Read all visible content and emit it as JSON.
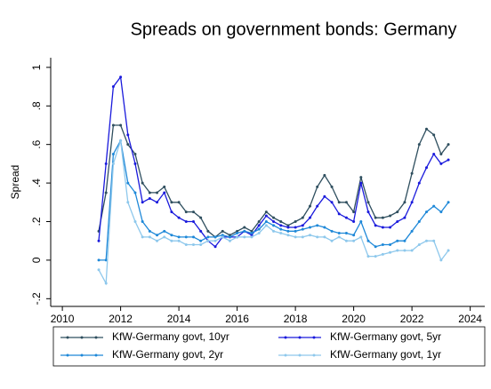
{
  "chart_data": {
    "type": "line",
    "title": "Spreads on government bonds: Germany",
    "y_label": "Spread",
    "x": [
      2011.25,
      2011.5,
      2011.75,
      2012.0,
      2012.25,
      2012.5,
      2012.75,
      2013.0,
      2013.25,
      2013.5,
      2013.75,
      2014.0,
      2014.25,
      2014.5,
      2014.75,
      2015.0,
      2015.25,
      2015.5,
      2015.75,
      2016.0,
      2016.25,
      2016.5,
      2016.75,
      2017.0,
      2017.25,
      2017.5,
      2017.75,
      2018.0,
      2018.25,
      2018.5,
      2018.75,
      2019.0,
      2019.25,
      2019.5,
      2019.75,
      2020.0,
      2020.25,
      2020.5,
      2020.75,
      2021.0,
      2021.25,
      2021.5,
      2021.75,
      2022.0,
      2022.25,
      2022.5,
      2022.75,
      2023.0,
      2023.25
    ],
    "series": [
      {
        "name": "KfW-Germany govt, 10yr",
        "color": "#2f4f5f",
        "values": [
          0.15,
          0.35,
          0.7,
          0.7,
          0.6,
          0.55,
          0.4,
          0.35,
          0.35,
          0.38,
          0.3,
          0.3,
          0.25,
          0.25,
          0.22,
          0.15,
          0.12,
          0.15,
          0.13,
          0.15,
          0.17,
          0.15,
          0.2,
          0.25,
          0.22,
          0.2,
          0.18,
          0.2,
          0.22,
          0.28,
          0.38,
          0.44,
          0.38,
          0.3,
          0.3,
          0.25,
          0.43,
          0.3,
          0.22,
          0.22,
          0.23,
          0.25,
          0.3,
          0.45,
          0.6,
          0.68,
          0.65,
          0.55,
          0.6
        ]
      },
      {
        "name": "KfW-Germany govt, 5yr",
        "color": "#1a1adc",
        "values": [
          0.1,
          0.5,
          0.9,
          0.95,
          0.65,
          0.5,
          0.3,
          0.32,
          0.3,
          0.35,
          0.25,
          0.22,
          0.2,
          0.2,
          0.15,
          0.1,
          0.07,
          0.12,
          0.12,
          0.12,
          0.15,
          0.13,
          0.18,
          0.23,
          0.2,
          0.18,
          0.17,
          0.17,
          0.18,
          0.22,
          0.28,
          0.33,
          0.3,
          0.24,
          0.22,
          0.2,
          0.4,
          0.25,
          0.18,
          0.17,
          0.17,
          0.2,
          0.22,
          0.3,
          0.4,
          0.48,
          0.55,
          0.5,
          0.52
        ]
      },
      {
        "name": "KfW-Germany govt, 2yr",
        "color": "#1e88d8",
        "values": [
          0.0,
          0.0,
          0.55,
          0.62,
          0.4,
          0.35,
          0.2,
          0.15,
          0.13,
          0.15,
          0.13,
          0.12,
          0.12,
          0.12,
          0.1,
          0.12,
          0.12,
          0.13,
          0.12,
          0.14,
          0.15,
          0.14,
          0.16,
          0.2,
          0.18,
          0.16,
          0.15,
          0.15,
          0.16,
          0.17,
          0.18,
          0.17,
          0.15,
          0.14,
          0.14,
          0.13,
          0.2,
          0.1,
          0.07,
          0.08,
          0.08,
          0.1,
          0.1,
          0.15,
          0.2,
          0.25,
          0.28,
          0.25,
          0.3
        ]
      },
      {
        "name": "KfW-Germany govt, 1yr",
        "color": "#8ec8ec",
        "values": [
          -0.05,
          -0.12,
          0.5,
          0.62,
          0.3,
          0.2,
          0.12,
          0.12,
          0.1,
          0.12,
          0.1,
          0.1,
          0.08,
          0.08,
          0.08,
          0.1,
          0.1,
          0.12,
          0.1,
          0.12,
          0.12,
          0.12,
          0.14,
          0.18,
          0.15,
          0.14,
          0.13,
          0.12,
          0.12,
          0.13,
          0.12,
          0.12,
          0.1,
          0.12,
          0.1,
          0.1,
          0.12,
          0.02,
          0.02,
          0.03,
          0.04,
          0.05,
          0.05,
          0.05,
          0.08,
          0.1,
          0.1,
          0.0,
          0.05
        ]
      }
    ],
    "xlim": [
      2009.6,
      2024.5
    ],
    "xticks": [
      2010,
      2012,
      2014,
      2016,
      2018,
      2020,
      2022,
      2024
    ],
    "ylim": [
      -0.24,
      1.05
    ],
    "yticks": [
      {
        "value": -0.2,
        "label": "-.2"
      },
      0,
      {
        "value": 0.2,
        "label": ".2"
      },
      {
        "value": 0.4,
        "label": ".4"
      },
      {
        "value": 0.6,
        "label": ".6"
      },
      {
        "value": 0.8,
        "label": ".8"
      },
      1
    ]
  }
}
